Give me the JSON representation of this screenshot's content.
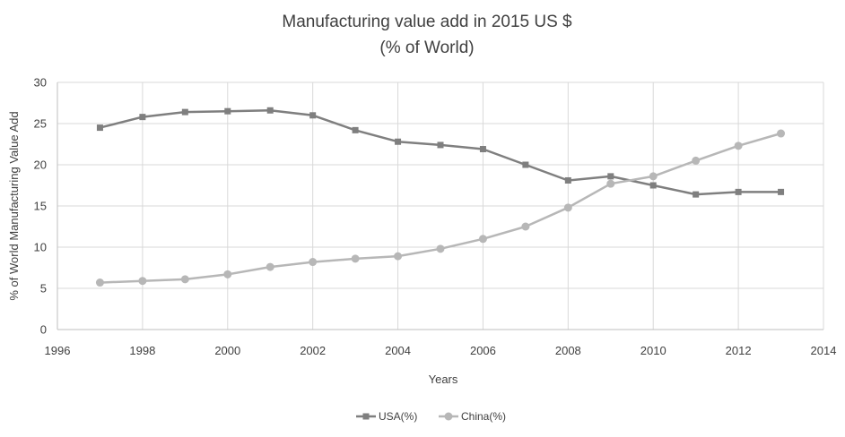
{
  "chart_data": {
    "type": "line",
    "title": "Manufacturing value add in 2015 US $",
    "subtitle": "(% of World)",
    "xlabel": "Years",
    "ylabel": "% of World Manufacturing Value Add",
    "xlim": [
      1996,
      2014
    ],
    "ylim": [
      0,
      30
    ],
    "x_ticks": [
      1996,
      1998,
      2000,
      2002,
      2004,
      2006,
      2008,
      2010,
      2012,
      2014
    ],
    "y_ticks": [
      0,
      5,
      10,
      15,
      20,
      25,
      30
    ],
    "grid": true,
    "legend_position": "bottom",
    "x": [
      1997,
      1998,
      1999,
      2000,
      2001,
      2002,
      2003,
      2004,
      2005,
      2006,
      2007,
      2008,
      2009,
      2010,
      2011,
      2012,
      2013
    ],
    "series": [
      {
        "name": "USA(%)",
        "marker": "square",
        "color": "#7f7f7f",
        "values": [
          24.5,
          25.8,
          26.4,
          26.5,
          26.6,
          26.0,
          24.2,
          22.8,
          22.4,
          21.9,
          20.0,
          18.1,
          18.6,
          17.5,
          16.4,
          16.7,
          16.7
        ]
      },
      {
        "name": "China(%)",
        "marker": "circle",
        "color": "#b7b7b7",
        "values": [
          5.7,
          5.9,
          6.1,
          6.7,
          7.6,
          8.2,
          8.6,
          8.9,
          9.8,
          11.0,
          12.5,
          14.8,
          17.7,
          18.6,
          20.5,
          22.3,
          23.8
        ]
      }
    ]
  }
}
